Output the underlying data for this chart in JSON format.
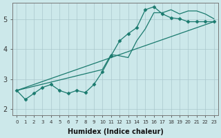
{
  "bg_color": "#cce8ea",
  "grid_color": "#aac8cc",
  "line_color": "#1a7a6e",
  "marker_color": "#1a7a6e",
  "xlabel": "Humidex (Indice chaleur)",
  "xlim": [
    -0.5,
    23.5
  ],
  "ylim": [
    1.8,
    5.55
  ],
  "xticks": [
    0,
    1,
    2,
    3,
    4,
    5,
    6,
    7,
    8,
    9,
    10,
    11,
    12,
    13,
    14,
    15,
    16,
    17,
    18,
    19,
    20,
    21,
    22,
    23
  ],
  "yticks": [
    2,
    3,
    4,
    5
  ],
  "series": [
    {
      "x": [
        0,
        1,
        2,
        3,
        4,
        5,
        6,
        7,
        8,
        9,
        10,
        11,
        12,
        13,
        14,
        15,
        16,
        17,
        18,
        19,
        20,
        21,
        22,
        23
      ],
      "y": [
        2.62,
        2.32,
        2.52,
        2.72,
        2.82,
        2.62,
        2.52,
        2.62,
        2.55,
        2.82,
        3.25,
        3.78,
        4.28,
        4.52,
        4.72,
        5.32,
        5.42,
        5.18,
        5.05,
        5.02,
        4.92,
        4.92,
        4.92,
        4.92
      ],
      "marker": "D",
      "markersize": 2.5,
      "linewidth": 0.9
    },
    {
      "x": [
        0,
        10,
        11,
        12,
        13,
        14,
        15,
        16,
        17,
        18,
        19,
        20,
        21,
        22,
        23
      ],
      "y": [
        2.62,
        3.32,
        3.82,
        3.78,
        3.72,
        4.28,
        4.68,
        5.22,
        5.22,
        5.32,
        5.18,
        5.28,
        5.28,
        5.18,
        5.02
      ],
      "marker": null,
      "markersize": 0,
      "linewidth": 0.9
    },
    {
      "x": [
        0,
        23
      ],
      "y": [
        2.62,
        4.92
      ],
      "marker": null,
      "markersize": 0,
      "linewidth": 0.9
    }
  ]
}
